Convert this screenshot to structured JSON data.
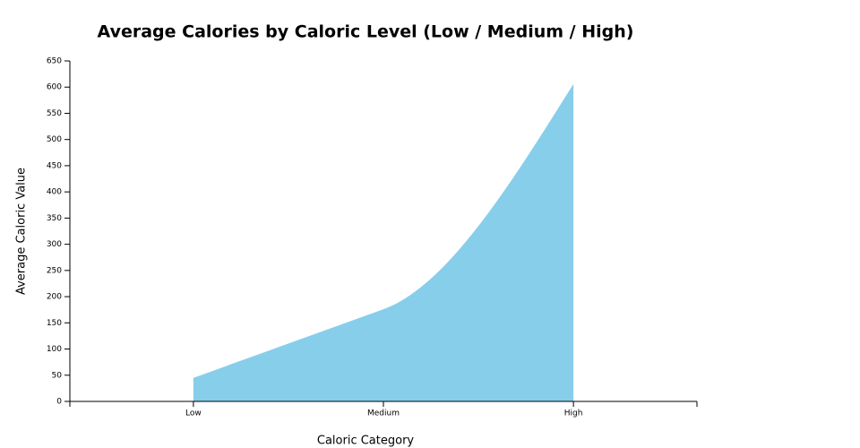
{
  "chart_data": {
    "type": "area",
    "title": "Average Calories by Caloric Level (Low / Medium / High)",
    "x_label": "Caloric Category",
    "y_label": "Average Caloric Value",
    "categories": [
      "Low",
      "Medium",
      "High"
    ],
    "values": [
      45,
      176,
      606
    ],
    "color": "#87ceeb",
    "ylim": [
      0,
      650
    ],
    "yticks": [
      0,
      50,
      100,
      150,
      200,
      250,
      300,
      350,
      400,
      450,
      500,
      550,
      600,
      650
    ],
    "grid": false
  }
}
